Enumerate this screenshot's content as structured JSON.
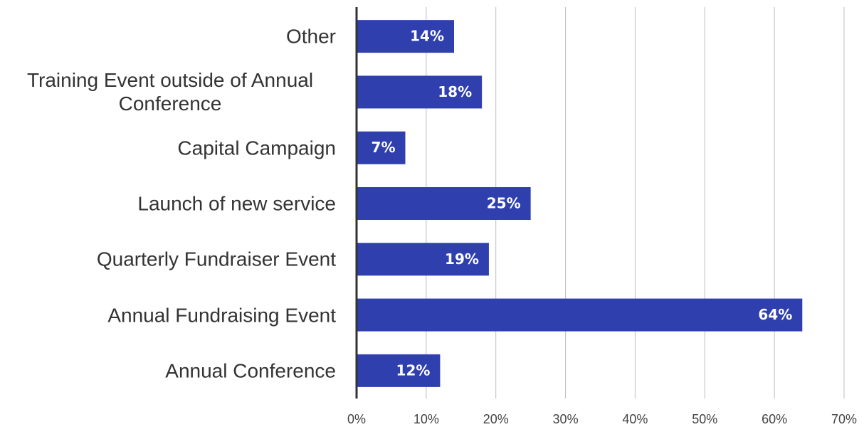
{
  "chart_data": {
    "type": "hbar",
    "categories": [
      "Other",
      "Training Event outside of Annual Conference",
      "Capital Campaign",
      "Launch of new service",
      "Quarterly Fundraiser Event",
      "Annual Fundraising Event",
      "Annual Conference"
    ],
    "values": [
      14,
      18,
      7,
      25,
      19,
      64,
      12
    ],
    "value_labels": [
      "14%",
      "18%",
      "7%",
      "25%",
      "19%",
      "64%",
      "12%"
    ],
    "color": "#2f3fae",
    "xlim": [
      0,
      70
    ],
    "xticks": [
      {
        "value": 0,
        "label": "0%"
      },
      {
        "value": 10,
        "label": "10%"
      },
      {
        "value": 20,
        "label": "20%"
      },
      {
        "value": 30,
        "label": "30%"
      },
      {
        "value": 40,
        "label": "40%"
      },
      {
        "value": 50,
        "label": "50%"
      },
      {
        "value": 60,
        "label": "60%"
      },
      {
        "value": 70,
        "label": "70%"
      }
    ],
    "grid": true
  }
}
